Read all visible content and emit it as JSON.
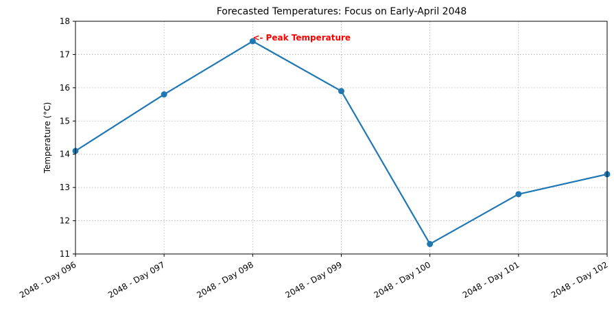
{
  "chart_data": {
    "type": "line",
    "title": "Forecasted Temperatures: Focus on Early-April 2048",
    "xlabel": "",
    "ylabel": "Temperature (°C)",
    "categories": [
      "2048 - Day 096",
      "2048 - Day 097",
      "2048 - Day 098",
      "2048 - Day 099",
      "2048 - Day 100",
      "2048 - Day 101",
      "2048 - Day 102"
    ],
    "series": [
      {
        "values": [
          14.1,
          15.8,
          17.4,
          15.9,
          11.3,
          12.8,
          13.4
        ],
        "color": "#1f77b4"
      }
    ],
    "ylim": [
      11,
      18
    ],
    "yticks": [
      11,
      12,
      13,
      14,
      15,
      16,
      17,
      18
    ],
    "grid": true,
    "annotation": {
      "text": "<- Peak Temperature",
      "category_index": 2,
      "value": 17.4,
      "color": "#ff0000"
    }
  }
}
